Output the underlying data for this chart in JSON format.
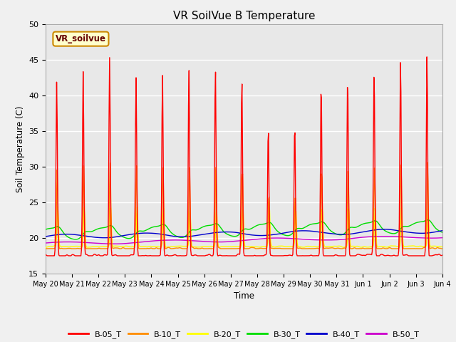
{
  "title": "VR SoilVue B Temperature",
  "ylabel": "Soil Temperature (C)",
  "xlabel": "Time",
  "ylim": [
    15,
    50
  ],
  "annotation_text": "VR_soilvue",
  "series_colors": {
    "B-05_T": "#ff0000",
    "B-10_T": "#ff8c00",
    "B-20_T": "#ffff00",
    "B-30_T": "#00dd00",
    "B-40_T": "#0000cc",
    "B-50_T": "#cc00cc"
  },
  "legend_labels": [
    "B-05_T",
    "B-10_T",
    "B-20_T",
    "B-30_T",
    "B-40_T",
    "B-50_T"
  ],
  "x_tick_labels": [
    "May 20",
    "May 21",
    "May 22",
    "May 23",
    "May 24",
    "May 25",
    "May 26",
    "May 27",
    "May 28",
    "May 29",
    "May 30",
    "May 31",
    "Jun 1",
    "Jun 2",
    "Jun 3",
    "Jun 4"
  ],
  "num_days": 15,
  "plot_bg_color": "#e8e8e8",
  "grid_color": "#ffffff",
  "fig_bg_color": "#f0f0f0"
}
